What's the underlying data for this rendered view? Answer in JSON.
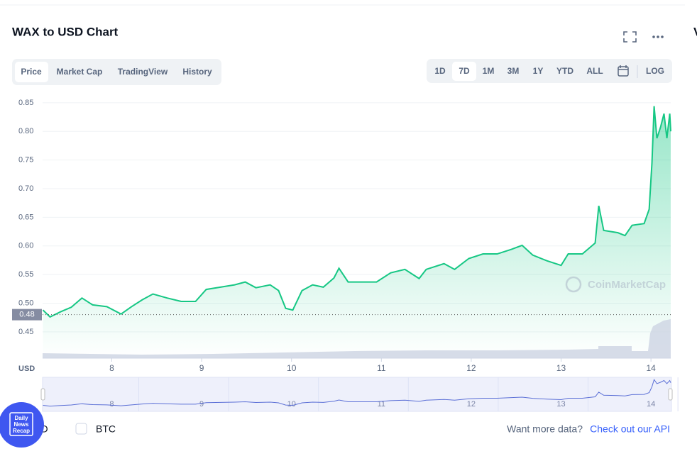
{
  "header": {
    "title": "WAX to USD Chart",
    "side_letter": "V"
  },
  "tabs": [
    "Price",
    "Market Cap",
    "TradingView",
    "History"
  ],
  "ranges": [
    "1D",
    "7D",
    "1M",
    "3M",
    "1Y",
    "YTD",
    "ALL"
  ],
  "log_button": "LOG",
  "watermark": "CoinMarketCap",
  "footer": {
    "currencies": [
      "USD",
      "BTC"
    ],
    "prompt": "Want more data?",
    "link": "Check out our API"
  },
  "badge": [
    "Daily",
    "News",
    "Recap"
  ],
  "chart_data": {
    "type": "line",
    "y_axis_label": "USD",
    "color": "#16c784",
    "current": {
      "value": 0.48,
      "label": "0.48"
    },
    "xlim": [
      7.23,
      14.22
    ],
    "xticks": [
      8,
      9,
      10,
      11,
      12,
      13,
      14
    ],
    "ylim": [
      0.404,
      0.856
    ],
    "yticks": [
      0.45,
      {
        "value": 0.5,
        "label": "0.50"
      },
      0.55,
      {
        "value": 0.6,
        "label": "0.60"
      },
      0.65,
      {
        "value": 0.7,
        "label": "0.70"
      },
      0.75,
      {
        "value": 0.8,
        "label": "0.80"
      },
      0.85
    ],
    "grid": true,
    "series": [
      {
        "name": "Price",
        "color": "#16c784",
        "x": [
          7.234,
          7.313,
          7.431,
          7.55,
          7.668,
          7.787,
          7.945,
          8.103,
          8.221,
          8.34,
          8.458,
          8.616,
          8.774,
          8.932,
          9.051,
          9.209,
          9.367,
          9.485,
          9.604,
          9.762,
          9.856,
          9.935,
          10.014,
          10.117,
          10.235,
          10.354,
          10.472,
          10.528,
          10.63,
          10.788,
          10.946,
          11.104,
          11.262,
          11.42,
          11.499,
          11.697,
          11.815,
          11.973,
          12.131,
          12.289,
          12.447,
          12.566,
          12.684,
          12.842,
          13.0,
          13.079,
          13.237,
          13.379,
          13.419,
          13.474,
          13.632,
          13.711,
          13.79,
          13.924,
          13.98,
          14.011,
          14.035,
          14.066,
          14.106,
          14.145,
          14.177,
          14.209,
          14.22
        ],
        "values": [
          0.488,
          0.476,
          0.485,
          0.493,
          0.509,
          0.497,
          0.494,
          0.481,
          0.494,
          0.506,
          0.516,
          0.509,
          0.503,
          0.503,
          0.524,
          0.528,
          0.532,
          0.537,
          0.527,
          0.532,
          0.522,
          0.491,
          0.488,
          0.522,
          0.532,
          0.528,
          0.544,
          0.561,
          0.537,
          0.537,
          0.537,
          0.553,
          0.559,
          0.543,
          0.559,
          0.569,
          0.559,
          0.578,
          0.586,
          0.586,
          0.594,
          0.601,
          0.584,
          0.574,
          0.566,
          0.586,
          0.586,
          0.605,
          0.67,
          0.627,
          0.623,
          0.618,
          0.636,
          0.639,
          0.664,
          0.745,
          0.844,
          0.788,
          0.807,
          0.831,
          0.788,
          0.831,
          0.8
        ]
      }
    ]
  }
}
